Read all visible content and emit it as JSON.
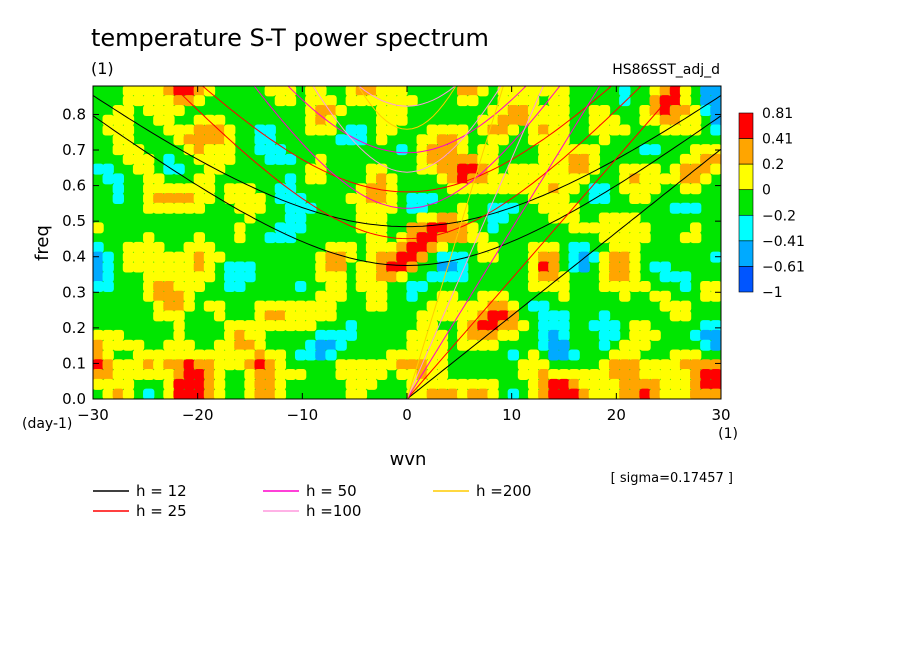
{
  "chart_data": {
    "type": "heatmap",
    "title": "temperature S-T power spectrum",
    "subtitle_left": "(1)",
    "subtitle_right": "HS86SST_adj_d",
    "xlabel": "wvn",
    "ylabel": "freq",
    "x_unit": "(1)",
    "y_unit": "(day-1)",
    "xlim": [
      -30,
      30
    ],
    "ylim": [
      0,
      0.88
    ],
    "x_ticks": [
      "-30",
      "-20",
      "-10",
      "0",
      "10",
      "20",
      "30"
    ],
    "y_ticks": [
      "0.0",
      "0.1",
      "0.2",
      "0.3",
      "0.4",
      "0.5",
      "0.6",
      "0.7",
      "0.8"
    ],
    "sigma_note": "[ sigma=0.17457 ]",
    "colorbar": {
      "labels": [
        "0.81",
        "0.41",
        "0.2",
        "0",
        "-0.2",
        "-0.41",
        "-0.61",
        "-1"
      ],
      "colors": [
        "#ff0000",
        "#ffa500",
        "#ffff00",
        "#00e600",
        "#00ffff",
        "#00aaff",
        "#0055ff"
      ]
    },
    "dispersion_legend": [
      {
        "label": "h = 12",
        "h": 12,
        "color": "#000000"
      },
      {
        "label": "h = 25",
        "h": 25,
        "color": "#ff0000"
      },
      {
        "label": "h = 50",
        "h": 50,
        "color": "#ff00cc"
      },
      {
        "label": "h =100",
        "h": 100,
        "color": "#ff99dd"
      },
      {
        "label": "h =200",
        "h": 200,
        "color": "#ffcc00"
      }
    ],
    "field_description_values": {
      "dominant_levels": [
        "0",
        "0.2"
      ],
      "background_level": "0"
    }
  }
}
